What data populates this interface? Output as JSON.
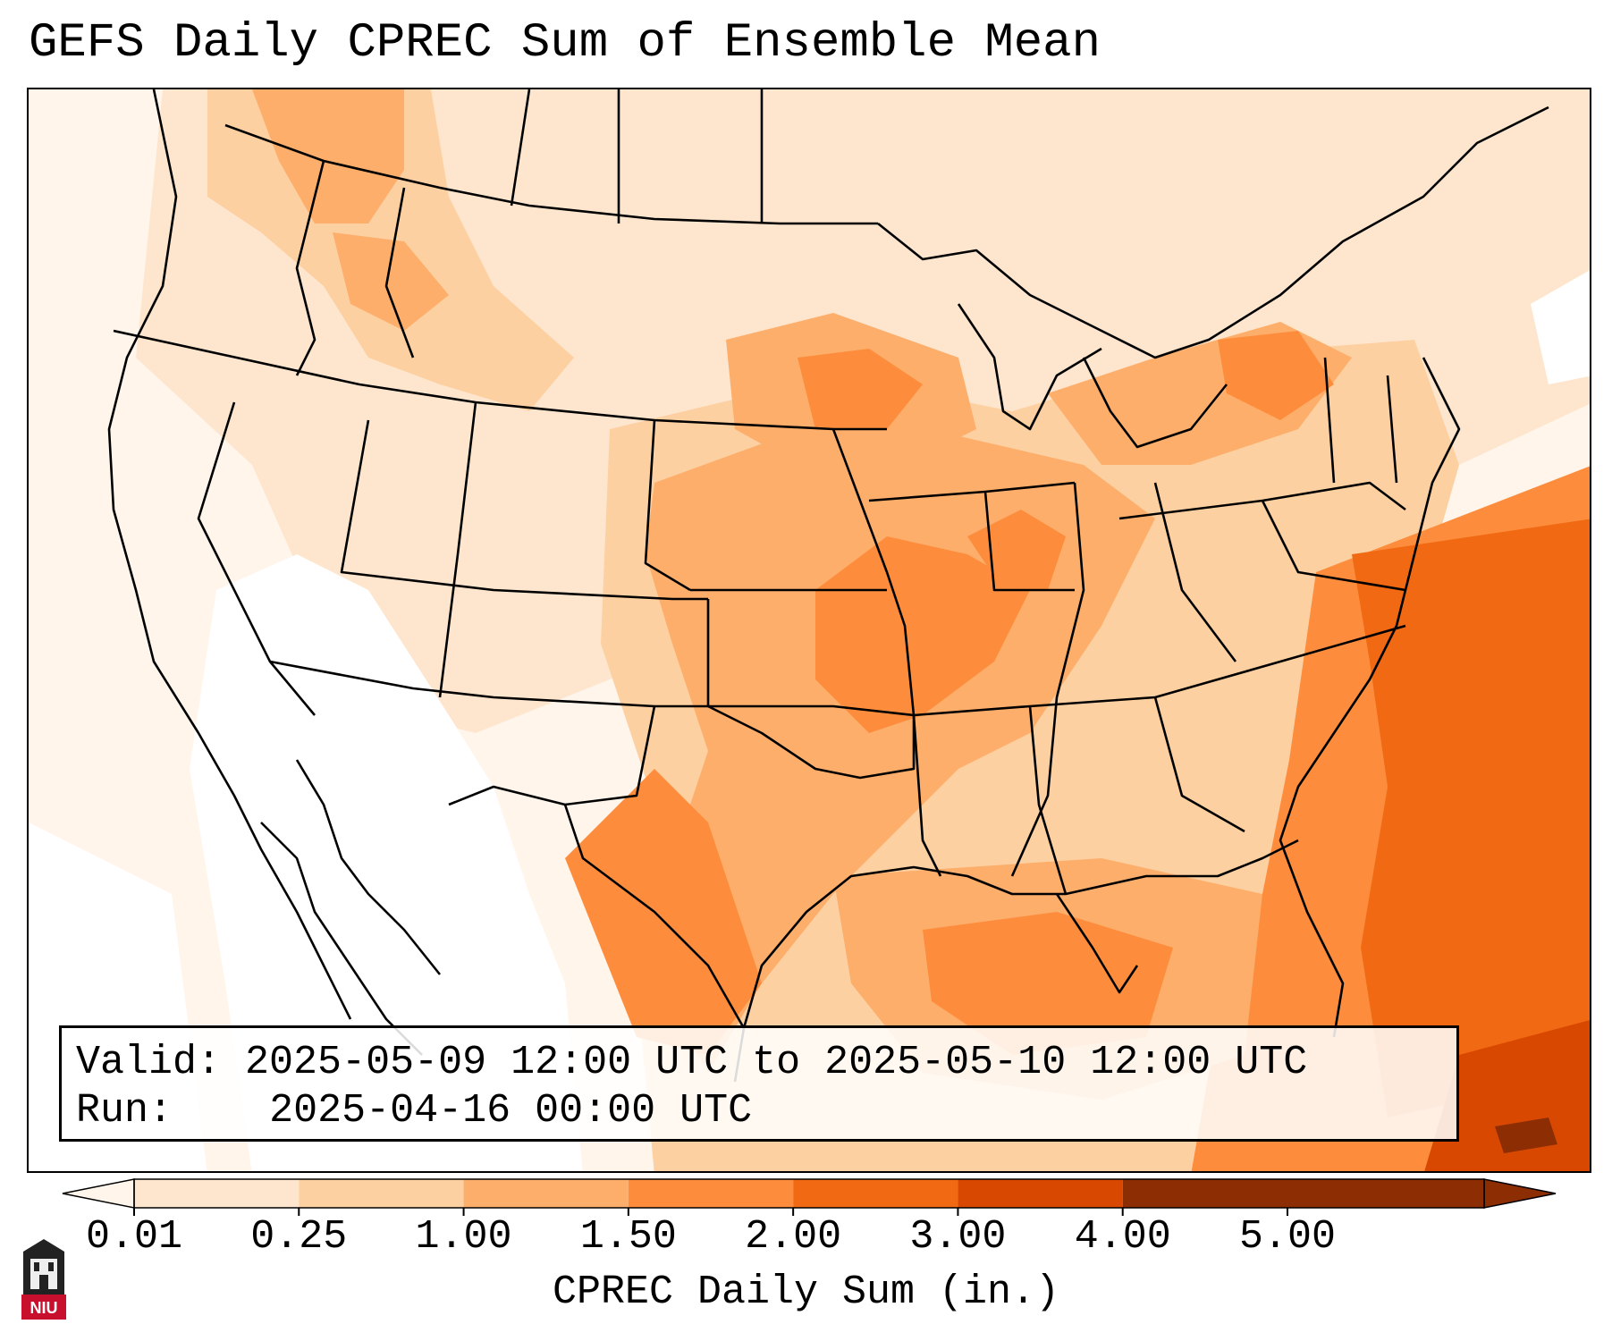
{
  "title": "GEFS Daily CPREC Sum of Ensemble Mean",
  "info": {
    "valid_label": "Valid:",
    "valid_value": "2025-05-09 12:00 UTC to 2025-05-10 12:00 UTC",
    "run_label": "Run:",
    "run_value": "2025-04-16 00:00 UTC"
  },
  "colorbar": {
    "label": "CPREC Daily Sum (in.)",
    "ticks": [
      "0.01",
      "0.25",
      "1.00",
      "1.50",
      "2.00",
      "3.00",
      "4.00",
      "5.00"
    ],
    "colors": [
      "#fff5eb",
      "#fee6ce",
      "#fdd0a2",
      "#fdae6b",
      "#fd8d3c",
      "#f16913",
      "#d94801",
      "#8c2d04"
    ]
  },
  "logo": {
    "text": "NIU",
    "color": "#c8102e"
  }
}
